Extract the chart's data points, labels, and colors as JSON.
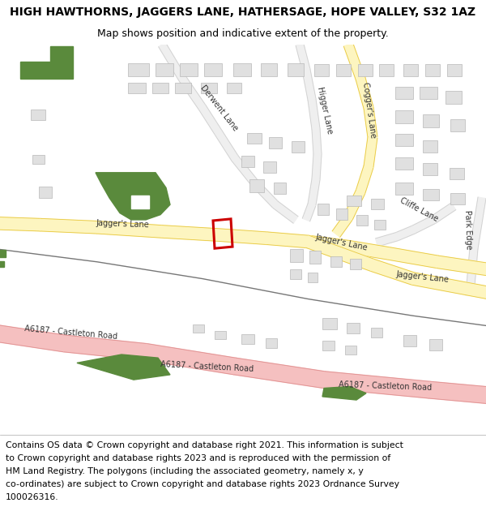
{
  "title": "HIGH HAWTHORNS, JAGGERS LANE, HATHERSAGE, HOPE VALLEY, S32 1AZ",
  "subtitle": "Map shows position and indicative extent of the property.",
  "footer_lines": [
    "Contains OS data © Crown copyright and database right 2021. This information is subject",
    "to Crown copyright and database rights 2023 and is reproduced with the permission of",
    "HM Land Registry. The polygons (including the associated geometry, namely x, y",
    "co-ordinates) are subject to Crown copyright and database rights 2023 Ordnance Survey",
    "100026316."
  ],
  "title_fontsize": 10.0,
  "subtitle_fontsize": 9.0,
  "footer_fontsize": 7.8,
  "road_label_fontsize": 7.0,
  "yellow_road_color": "#fdf5c0",
  "yellow_road_edge": "#e8c840",
  "pink_road_color": "#f5c0c0",
  "pink_road_edge": "#e09090",
  "grey_road_color": "#efefef",
  "grey_road_edge": "#d0d0d0",
  "green_color": "#5a8a3c",
  "building_face": "#e0e0e0",
  "building_edge": "#b8b8b8",
  "red_plot_color": "#cc0000",
  "bg_color": "#ffffff"
}
